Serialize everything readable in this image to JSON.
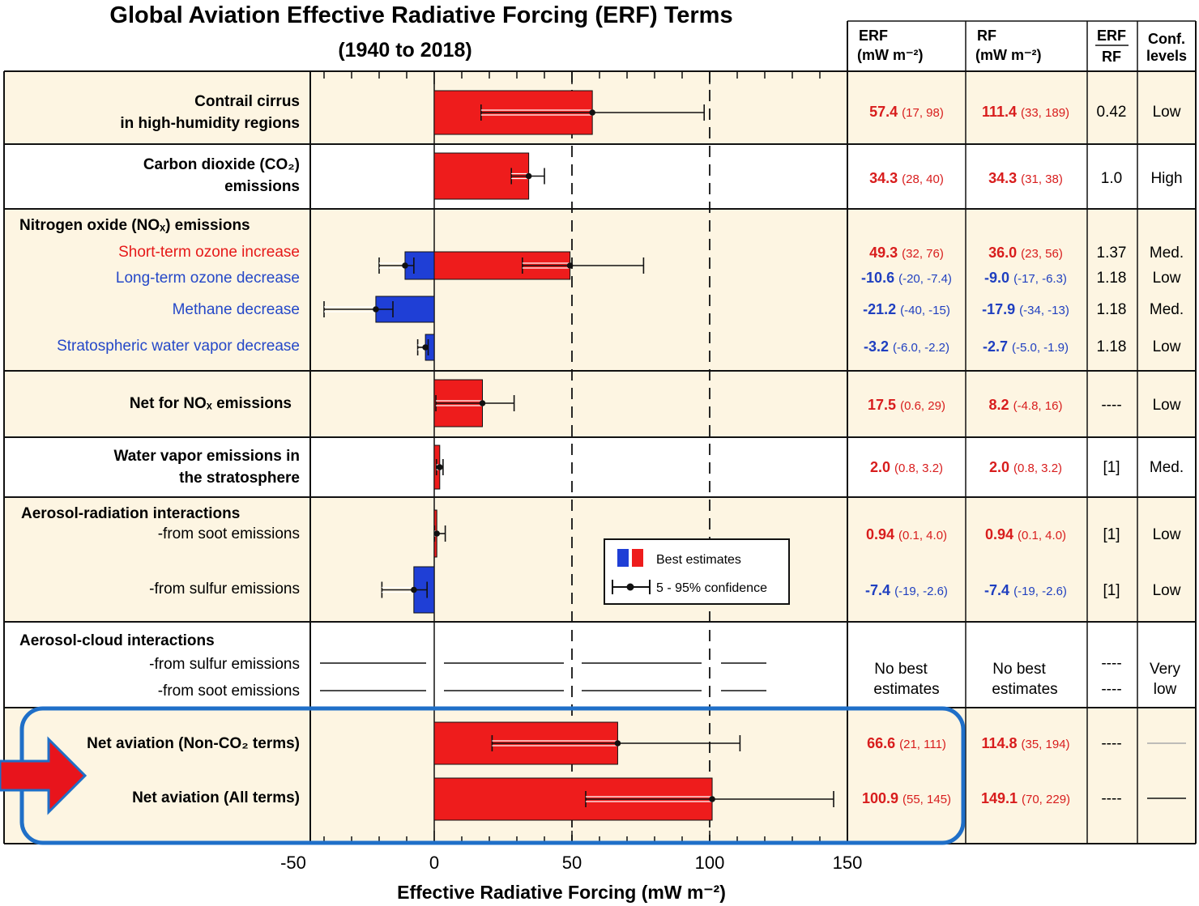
{
  "title": "Global Aviation Effective Radiative Forcing (ERF) Terms",
  "subtitle": "(1940 to 2018)",
  "headers": {
    "erf": "ERF",
    "erf_unit": "(mW m⁻²)",
    "rf": "RF",
    "rf_unit": "(mW m⁻²)",
    "ratio_top": "ERF",
    "ratio_bottom": "RF",
    "conf_top": "Conf.",
    "conf_bottom": "levels"
  },
  "labels": {
    "contrail_1": "Contrail cirrus",
    "contrail_2": "in high-humidity regions",
    "co2_1": "Carbon dioxide (CO₂)",
    "co2_2": "emissions",
    "nox_head": "Nitrogen oxide (NOₓ) emissions",
    "nox_short": "Short-term ozone increase",
    "nox_long": "Long-term ozone decrease",
    "nox_meth": "Methane decrease",
    "nox_strat": "Stratospheric water vapor decrease",
    "net_nox": "Net for NOₓ emissions",
    "wv_1": "Water vapor emissions in",
    "wv_2": "the stratosphere",
    "aer_head": "Aerosol-radiation interactions",
    "aer_soot": "-from soot emissions",
    "aer_sulf": "-from sulfur emissions",
    "cloud_head": "Aerosol-cloud interactions",
    "cloud_sulf": "-from sulfur emissions",
    "cloud_soot": "-from soot emissions",
    "net_nonco2": "Net aviation (Non-CO₂ terms)",
    "net_all": "Net aviation (All terms)"
  },
  "legend": {
    "best": "Best estimates",
    "conf": "5 - 95% confidence"
  },
  "no_best": {
    "line1": "No best",
    "line2": "estimates"
  },
  "colors": {
    "warming": "#ee1c1c",
    "cooling": "#1f3fd6",
    "row_shade": "#fdf5e2",
    "highlight_box": "#1f6fc8",
    "arrow": "#e8141c"
  },
  "chart_data": {
    "type": "bar",
    "orientation": "horizontal",
    "xlabel": "Effective Radiative Forcing  (mW m⁻²)",
    "xlim": [
      -45,
      150
    ],
    "xticks": [
      -50,
      0,
      50,
      100,
      150
    ],
    "xtick_labels": [
      "-50",
      "0",
      "50",
      "100",
      "150"
    ],
    "series": [
      {
        "key": "contrail",
        "erf": 57.4,
        "erf_lo": 17,
        "erf_hi": 98,
        "rf": 111.4,
        "rf_lo": 33,
        "rf_hi": 189,
        "ratio": "0.42",
        "conf": "Low",
        "erf_text": "57.4",
        "erf_range": "(17, 98)",
        "rf_text": "111.4",
        "rf_range": "(33, 189)",
        "sign": "pos"
      },
      {
        "key": "co2",
        "erf": 34.3,
        "erf_lo": 28,
        "erf_hi": 40,
        "rf": 34.3,
        "rf_lo": 31,
        "rf_hi": 38,
        "ratio": "1.0",
        "conf": "High",
        "erf_text": "34.3",
        "erf_range": "(28, 40)",
        "rf_text": "34.3",
        "rf_range": "(31, 38)",
        "sign": "pos"
      },
      {
        "key": "nox_short",
        "erf": 49.3,
        "erf_lo": 32,
        "erf_hi": 76,
        "rf": 36.0,
        "rf_lo": 23,
        "rf_hi": 56,
        "ratio": "1.37",
        "conf": "Med.",
        "erf_text": "49.3",
        "erf_range": "(32, 76)",
        "rf_text": "36.0",
        "rf_range": "(23, 56)",
        "sign": "pos"
      },
      {
        "key": "nox_long",
        "erf": -10.6,
        "erf_lo": -20,
        "erf_hi": -7.4,
        "rf": -9.0,
        "rf_lo": -17,
        "rf_hi": -6.3,
        "ratio": "1.18",
        "conf": "Low",
        "erf_text": "-10.6",
        "erf_range": "(-20, -7.4)",
        "rf_text": "-9.0",
        "rf_range": "(-17, -6.3)",
        "sign": "neg"
      },
      {
        "key": "nox_meth",
        "erf": -21.2,
        "erf_lo": -40,
        "erf_hi": -15,
        "rf": -17.9,
        "rf_lo": -34,
        "rf_hi": -13,
        "ratio": "1.18",
        "conf": "Med.",
        "erf_text": "-21.2",
        "erf_range": "(-40, -15)",
        "rf_text": "-17.9",
        "rf_range": "(-34, -13)",
        "sign": "neg"
      },
      {
        "key": "nox_strat",
        "erf": -3.2,
        "erf_lo": -6.0,
        "erf_hi": -2.2,
        "rf": -2.7,
        "rf_lo": -5.0,
        "rf_hi": -1.9,
        "ratio": "1.18",
        "conf": "Low",
        "erf_text": "-3.2",
        "erf_range": "(-6.0, -2.2)",
        "rf_text": "-2.7",
        "rf_range": "(-5.0, -1.9)",
        "sign": "neg"
      },
      {
        "key": "net_nox",
        "erf": 17.5,
        "erf_lo": 0.6,
        "erf_hi": 29,
        "rf": 8.2,
        "rf_lo": -4.8,
        "rf_hi": 16,
        "ratio": "----",
        "conf": "Low",
        "erf_text": "17.5",
        "erf_range": "(0.6, 29)",
        "rf_text": "8.2",
        "rf_range": "(-4.8, 16)",
        "sign": "pos"
      },
      {
        "key": "water_vapor",
        "erf": 2.0,
        "erf_lo": 0.8,
        "erf_hi": 3.2,
        "rf": 2.0,
        "rf_lo": 0.8,
        "rf_hi": 3.2,
        "ratio": "[1]",
        "conf": "Med.",
        "erf_text": "2.0",
        "erf_range": "(0.8, 3.2)",
        "rf_text": "2.0",
        "rf_range": "(0.8, 3.2)",
        "sign": "pos"
      },
      {
        "key": "aer_soot",
        "erf": 0.94,
        "erf_lo": 0.1,
        "erf_hi": 4.0,
        "rf": 0.94,
        "rf_lo": 0.1,
        "rf_hi": 4.0,
        "ratio": "[1]",
        "conf": "Low",
        "erf_text": "0.94",
        "erf_range": "(0.1, 4.0)",
        "rf_text": "0.94",
        "rf_range": "(0.1, 4.0)",
        "sign": "pos"
      },
      {
        "key": "aer_sulf",
        "erf": -7.4,
        "erf_lo": -19,
        "erf_hi": -2.6,
        "rf": -7.4,
        "rf_lo": -19,
        "rf_hi": -2.6,
        "ratio": "[1]",
        "conf": "Low",
        "erf_text": "-7.4",
        "erf_range": "(-19, -2.6)",
        "rf_text": "-7.4",
        "rf_range": "(-19, -2.6)",
        "sign": "neg"
      },
      {
        "key": "net_nonco2",
        "erf": 66.6,
        "erf_lo": 21,
        "erf_hi": 111,
        "rf": 114.8,
        "rf_lo": 35,
        "rf_hi": 194,
        "ratio": "----",
        "conf": "",
        "erf_text": "66.6",
        "erf_range": "(21, 111)",
        "rf_text": "114.8",
        "rf_range": "(35, 194)",
        "sign": "pos"
      },
      {
        "key": "net_all",
        "erf": 100.9,
        "erf_lo": 55,
        "erf_hi": 145,
        "rf": 149.1,
        "rf_lo": 70,
        "rf_hi": 229,
        "ratio": "----",
        "conf": "",
        "erf_text": "100.9",
        "erf_range": "(55, 145)",
        "rf_text": "149.1",
        "rf_range": "(70, 229)",
        "sign": "pos"
      }
    ],
    "aerosol_cloud": {
      "ratio_sulf": "----",
      "ratio_soot": "----",
      "conf_1": "Very",
      "conf_2": "low"
    }
  }
}
